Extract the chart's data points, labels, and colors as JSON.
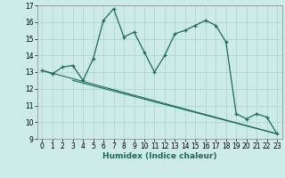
{
  "title": "",
  "xlabel": "Humidex (Indice chaleur)",
  "bg_color": "#cceae8",
  "grid_color": "#b8d8d5",
  "line_color": "#1a6b5a",
  "xlim": [
    -0.5,
    23.5
  ],
  "ylim": [
    9,
    17
  ],
  "yticks": [
    9,
    10,
    11,
    12,
    13,
    14,
    15,
    16,
    17
  ],
  "xticks": [
    0,
    1,
    2,
    3,
    4,
    5,
    6,
    7,
    8,
    9,
    10,
    11,
    12,
    13,
    14,
    15,
    16,
    17,
    18,
    19,
    20,
    21,
    22,
    23
  ],
  "main_x": [
    0,
    1,
    2,
    3,
    4,
    5,
    6,
    7,
    8,
    9,
    10,
    11,
    12,
    13,
    14,
    15,
    16,
    17,
    18,
    19,
    20,
    21,
    22,
    23
  ],
  "main_y": [
    13.1,
    12.9,
    13.3,
    13.4,
    12.5,
    13.8,
    16.1,
    16.8,
    15.1,
    15.4,
    14.2,
    13.0,
    14.0,
    15.3,
    15.5,
    15.8,
    16.1,
    15.8,
    14.8,
    10.5,
    10.2,
    10.5,
    10.3,
    9.3
  ],
  "line1_x": [
    0,
    23
  ],
  "line1_y": [
    13.1,
    9.3
  ],
  "line2_x": [
    3,
    23
  ],
  "line2_y": [
    12.5,
    9.3
  ],
  "tick_fontsize": 5.5,
  "xlabel_fontsize": 6.5
}
